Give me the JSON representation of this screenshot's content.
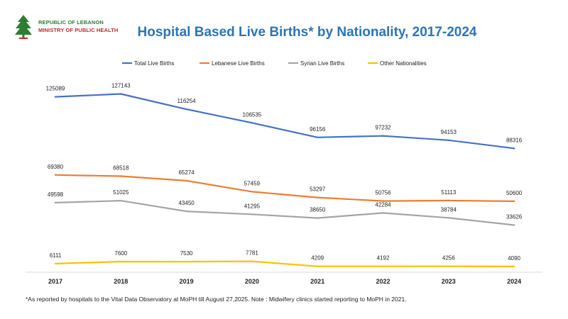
{
  "header": {
    "logo_line1": "REPUBLIC OF LEBANON",
    "logo_line2": "MINISTRY OF PUBLIC HEALTH",
    "title": "Hospital Based Live Births* by Nationality, 2017-2024"
  },
  "footnote": "*As reported by hospitals to the Vital Data Observatory at MoPH till August 27,2025. Note : Midwifery clinics started reporting to MoPH in 2021.",
  "colors": {
    "logo_green": "#2e7d32",
    "logo_red": "#c62828",
    "title": "#2e74b5"
  },
  "chart_data": {
    "type": "line",
    "title": "Hospital Based Live Births* by Nationality, 2017-2024",
    "xlabel": "",
    "ylabel": "",
    "categories": [
      "2017",
      "2018",
      "2019",
      "2020",
      "2021",
      "2022",
      "2023",
      "2024"
    ],
    "ylim": [
      0,
      135000
    ],
    "grid": false,
    "legend_position": "top",
    "series": [
      {
        "name": "Total Live Births",
        "color": "#4472c4",
        "values": [
          125089,
          127143,
          116254,
          106535,
          96156,
          97232,
          94153,
          88316
        ],
        "labels": [
          "125089",
          "127143",
          "116254",
          "106535",
          "96156",
          "97232",
          "94153",
          "88316"
        ]
      },
      {
        "name": "Lebanese Live Births",
        "color": "#ed7d31",
        "values": [
          69380,
          68518,
          65274,
          57459,
          53297,
          50756,
          51113,
          50600
        ],
        "labels": [
          "69380",
          "68518",
          "65274",
          "57459",
          "53297",
          "50756",
          "51113",
          "50600"
        ]
      },
      {
        "name": "Syrian Live Births",
        "color": "#a5a5a5",
        "values": [
          49598,
          51025,
          43450,
          41295,
          38650,
          42284,
          38784,
          33626
        ],
        "labels": [
          "49598",
          "51025",
          "43450",
          "41295",
          "38650",
          "42284",
          "38784",
          "33626"
        ]
      },
      {
        "name": "Other Nationalities",
        "color": "#ffc000",
        "values": [
          6111,
          7600,
          7530,
          7781,
          4209,
          4192,
          4256,
          4090
        ],
        "labels": [
          "6111",
          "7600",
          "7530",
          "7781",
          "4209",
          "4192",
          "4256",
          "4090"
        ]
      }
    ]
  }
}
